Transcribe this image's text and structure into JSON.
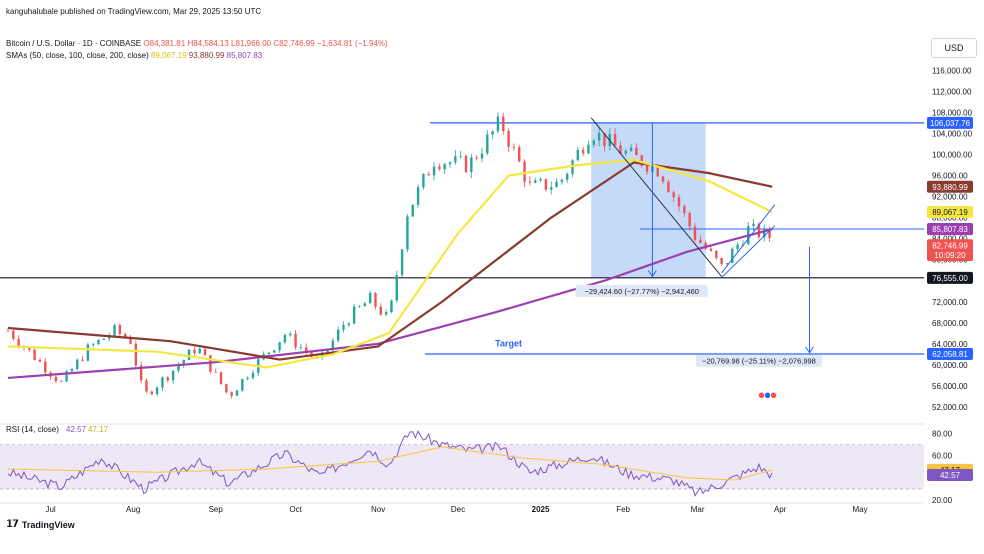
{
  "publisher": "kanguhalubale published on TradingView.com, Mar 29, 2025 13:50 UTC",
  "symbol_line": {
    "name": "Bitcoin / U.S. Dollar · 1D · COINBASE",
    "open": "O84,381.81",
    "high": "H84,584.13",
    "low": "L81,966.00",
    "close": "C82,746.99",
    "change": "−1,634.81 (−1.94%)"
  },
  "sma_line": {
    "label": "SMAs (50, close, 100, close, 200, close)",
    "v50": "89,067.19",
    "v100": "93,880.99",
    "v200": "85,807.83"
  },
  "currency_button": "USD",
  "brand": "TradingView",
  "colors": {
    "up": "#26a69a",
    "down": "#ef5350",
    "sma50": "#f5e642",
    "sma100": "#8b3a2f",
    "sma200": "#9c3fb0",
    "accent": "#2962ff",
    "rsi": "#7e57c2"
  },
  "chart_data": [
    {
      "type": "candlestick",
      "x_ticks": [
        "Jul",
        "Aug",
        "Sep",
        "Oct",
        "Nov",
        "Dec",
        "2025",
        "Feb",
        "Mar",
        "Apr",
        "May"
      ],
      "y_ticks": [
        52000,
        56000,
        60000,
        64000,
        68000,
        72000,
        76000,
        80000,
        84000,
        88000,
        92000,
        96000,
        100000,
        104000,
        108000,
        112000,
        116000
      ],
      "y_tick_labels": [
        "52,000.00",
        "56,000.00",
        "60,000.00",
        "64,000.00",
        "68,000.00",
        "72,000.00",
        "76,000.00",
        "80,000.00",
        "84,000.00",
        "88,000.00",
        "92,000.00",
        "96,000.00",
        "100,000.00",
        "104,000.00",
        "108,000.00",
        "112,000.00",
        "116,000.00"
      ],
      "ylim": [
        49500,
        118000
      ],
      "xlim": [
        "2024-06-15",
        "2025-05-25"
      ],
      "closes": [
        [
          "2024-06-15",
          66500
        ],
        [
          "2024-06-25",
          61500
        ],
        [
          "2024-07-05",
          56500
        ],
        [
          "2024-07-15",
          63000
        ],
        [
          "2024-07-25",
          66500
        ],
        [
          "2024-07-31",
          64600
        ],
        [
          "2024-08-05",
          54000
        ],
        [
          "2024-08-15",
          58500
        ],
        [
          "2024-08-25",
          63500
        ],
        [
          "2024-09-06",
          54000
        ],
        [
          "2024-09-15",
          59500
        ],
        [
          "2024-09-27",
          65800
        ],
        [
          "2024-10-10",
          60500
        ],
        [
          "2024-10-20",
          68500
        ],
        [
          "2024-10-29",
          72500
        ],
        [
          "2024-11-05",
          68500
        ],
        [
          "2024-11-12",
          89000
        ],
        [
          "2024-11-22",
          99000
        ],
        [
          "2024-12-05",
          98000
        ],
        [
          "2024-12-17",
          106200
        ],
        [
          "2024-12-28",
          93800
        ],
        [
          "2025-01-08",
          94500
        ],
        [
          "2025-01-20",
          104500
        ],
        [
          "2025-02-01",
          100500
        ],
        [
          "2025-02-15",
          97000
        ],
        [
          "2025-02-28",
          84500
        ],
        [
          "2025-03-10",
          78500
        ],
        [
          "2025-03-20",
          85800
        ],
        [
          "2025-03-28",
          84400
        ],
        [
          "2025-03-29",
          82747
        ]
      ],
      "sma50": [
        [
          "2024-06-15",
          63500
        ],
        [
          "2024-08-10",
          62500
        ],
        [
          "2024-09-20",
          59500
        ],
        [
          "2024-10-15",
          62000
        ],
        [
          "2024-11-05",
          66000
        ],
        [
          "2024-12-01",
          85000
        ],
        [
          "2024-12-20",
          96000
        ],
        [
          "2025-01-15",
          98000
        ],
        [
          "2025-02-05",
          99000
        ],
        [
          "2025-03-05",
          95000
        ],
        [
          "2025-03-29",
          89067
        ]
      ],
      "sma100": [
        [
          "2024-06-15",
          67000
        ],
        [
          "2024-08-15",
          64500
        ],
        [
          "2024-09-25",
          61000
        ],
        [
          "2024-11-01",
          63500
        ],
        [
          "2024-11-25",
          72000
        ],
        [
          "2025-01-05",
          88000
        ],
        [
          "2025-02-05",
          98500
        ],
        [
          "2025-03-05",
          96500
        ],
        [
          "2025-03-29",
          93881
        ]
      ],
      "sma200": [
        [
          "2024-06-15",
          57500
        ],
        [
          "2024-09-01",
          60500
        ],
        [
          "2024-11-01",
          64000
        ],
        [
          "2024-12-15",
          70000
        ],
        [
          "2025-01-25",
          76000
        ],
        [
          "2025-02-25",
          81500
        ],
        [
          "2025-03-29",
          85808
        ]
      ],
      "price_levels": [
        {
          "value": 106037.76,
          "label": "106,037.76",
          "kind": "accent"
        },
        {
          "value": 93880.99,
          "label": "93,880.99",
          "kind": "sma100"
        },
        {
          "value": 89067.19,
          "label": "89,067.19",
          "kind": "sma50"
        },
        {
          "value": 85842.62,
          "label": "85,842.62",
          "kind": "accent"
        },
        {
          "value": 85807.83,
          "label": "85,807.83",
          "kind": "sma200"
        },
        {
          "value": 82746.99,
          "label": "82,746.99",
          "kind": "down"
        },
        {
          "value": 80900,
          "label": "10:09:20",
          "kind": "down"
        },
        {
          "value": 76555.0,
          "label": "76,555.00",
          "kind": "dark"
        },
        {
          "value": 62058.81,
          "label": "62,058.81",
          "kind": "accent"
        }
      ],
      "annotations": [
        {
          "text": "−29,424.60 (−27.77%) −2,942,460",
          "at": [
            "2025-02-08",
            73700
          ]
        },
        {
          "text": "−20,769.98 (−25.11%) −2,076,998",
          "at": [
            "2025-03-24",
            60400
          ]
        },
        {
          "text": "Target",
          "at": [
            "2024-12-20",
            63500
          ]
        }
      ]
    },
    {
      "type": "line",
      "title": "RSI (14, close)",
      "rsi_value": "42.57",
      "rsi_ma_value": "47.17",
      "y_ticks": [
        20,
        40,
        60,
        80
      ],
      "y_tick_labels": [
        "20.00",
        "40.00",
        "60.00",
        "80.00"
      ],
      "ylim": [
        20,
        85
      ],
      "band": [
        30,
        70
      ],
      "rsi": [
        [
          "2024-06-15",
          45
        ],
        [
          "2024-07-05",
          32
        ],
        [
          "2024-07-20",
          58
        ],
        [
          "2024-08-05",
          30
        ],
        [
          "2024-08-25",
          55
        ],
        [
          "2024-09-06",
          35
        ],
        [
          "2024-09-27",
          62
        ],
        [
          "2024-10-10",
          42
        ],
        [
          "2024-10-29",
          66
        ],
        [
          "2024-11-05",
          52
        ],
        [
          "2024-11-13",
          82
        ],
        [
          "2024-11-25",
          70
        ],
        [
          "2024-12-05",
          65
        ],
        [
          "2024-12-17",
          68
        ],
        [
          "2024-12-28",
          45
        ],
        [
          "2025-01-20",
          60
        ],
        [
          "2025-02-03",
          44
        ],
        [
          "2025-02-20",
          38
        ],
        [
          "2025-03-01",
          26
        ],
        [
          "2025-03-10",
          35
        ],
        [
          "2025-03-24",
          50
        ],
        [
          "2025-03-29",
          42.57
        ]
      ],
      "rsi_ma": [
        [
          "2024-06-15",
          48
        ],
        [
          "2024-08-10",
          45
        ],
        [
          "2024-09-20",
          48
        ],
        [
          "2024-11-01",
          55
        ],
        [
          "2024-11-25",
          68
        ],
        [
          "2024-12-25",
          58
        ],
        [
          "2025-01-25",
          52
        ],
        [
          "2025-02-25",
          40
        ],
        [
          "2025-03-15",
          38
        ],
        [
          "2025-03-29",
          47.17
        ]
      ]
    }
  ]
}
